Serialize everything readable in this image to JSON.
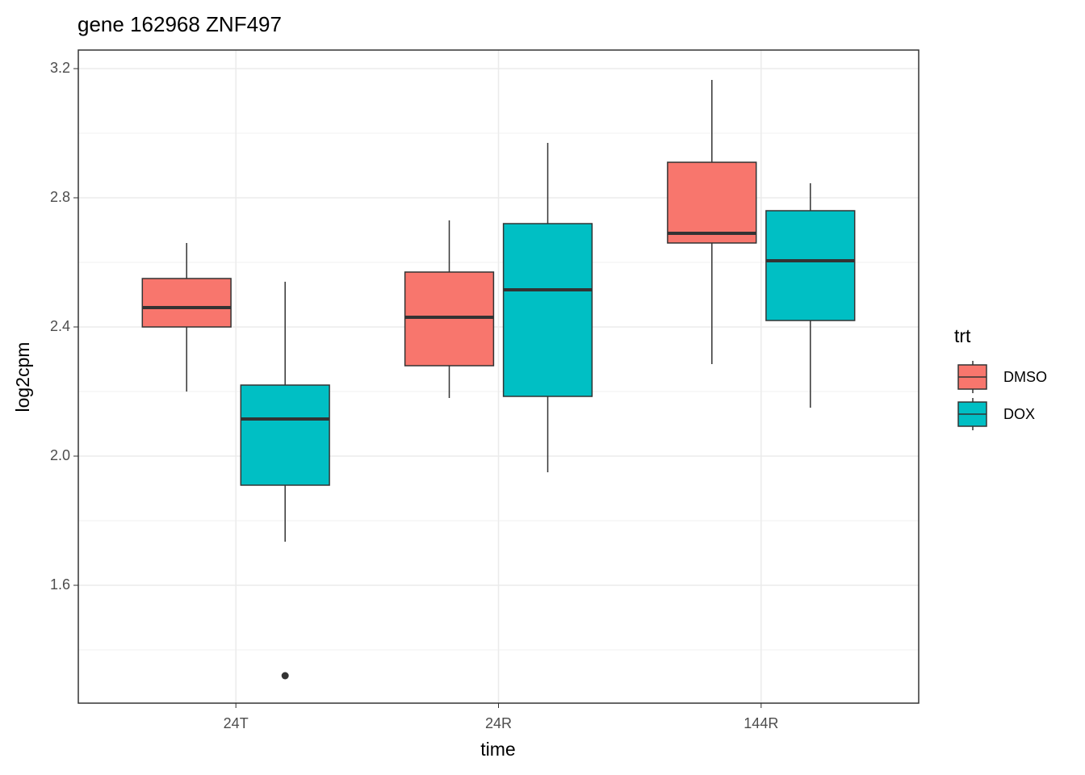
{
  "chart_data": {
    "type": "boxplot",
    "title": "gene 162968 ZNF497",
    "x_label": "time",
    "y_label": "log2cpm",
    "categories": [
      "24T",
      "24R",
      "144R"
    ],
    "legend_title": "trt",
    "legend_position": "right",
    "grid": true,
    "ylim": [
      1.235,
      3.2575
    ],
    "yticks": [
      1.6,
      {
        "value": 2,
        "label": "2.0"
      },
      2.4,
      2.8,
      3.2
    ],
    "series": [
      {
        "name": "DMSO",
        "color": "#F8766D",
        "boxes": [
          {
            "min": 2.2,
            "q1": 2.4,
            "median": 2.46,
            "q3": 2.55,
            "max": 2.66,
            "outliers": []
          },
          {
            "min": 2.18,
            "q1": 2.28,
            "median": 2.43,
            "q3": 2.57,
            "max": 2.73,
            "outliers": []
          },
          {
            "min": 2.285,
            "q1": 2.66,
            "median": 2.69,
            "q3": 2.91,
            "max": 3.165,
            "outliers": []
          }
        ]
      },
      {
        "name": "DOX",
        "color": "#00BFC4",
        "boxes": [
          {
            "min": 1.735,
            "q1": 1.91,
            "median": 2.115,
            "q3": 2.22,
            "max": 2.54,
            "outliers": [
              1.32
            ]
          },
          {
            "min": 1.95,
            "q1": 2.185,
            "median": 2.515,
            "q3": 2.72,
            "max": 2.97,
            "outliers": []
          },
          {
            "min": 2.15,
            "q1": 2.42,
            "median": 2.605,
            "q3": 2.76,
            "max": 2.845,
            "outliers": []
          }
        ]
      }
    ]
  }
}
